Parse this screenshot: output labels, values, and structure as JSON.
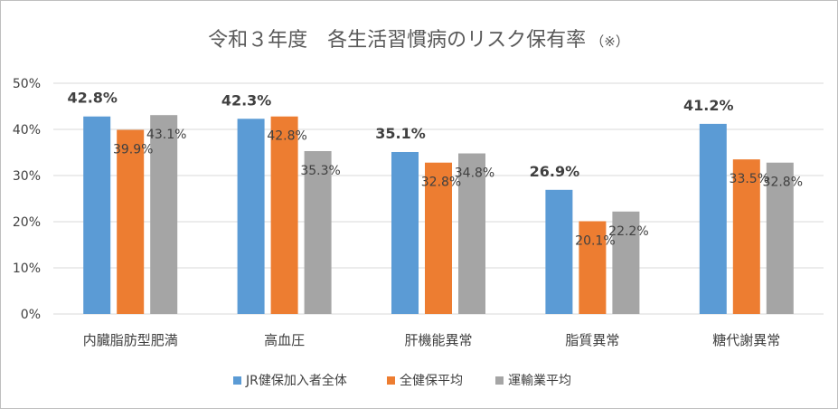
{
  "chart_data": {
    "type": "bar",
    "title": "令和３年度　各生活習慣病のリスク保有率",
    "title_note": "（※）",
    "categories": [
      "内臓脂肪型肥満",
      "高血圧",
      "肝機能異常",
      "脂質異常",
      "糖代謝異常"
    ],
    "series": [
      {
        "name": "JR健保加入者全体",
        "values": [
          42.8,
          42.3,
          35.1,
          26.9,
          41.2
        ],
        "color": "#5B9BD5"
      },
      {
        "name": "全健保平均",
        "values": [
          39.9,
          42.8,
          32.8,
          20.1,
          33.5
        ],
        "color": "#ED7D31"
      },
      {
        "name": "運輸業平均",
        "values": [
          43.1,
          35.3,
          34.8,
          22.2,
          32.8
        ],
        "color": "#A5A5A5"
      }
    ],
    "data_labels": [
      [
        "42.8%",
        "39.9%",
        "43.1%"
      ],
      [
        "42.3%",
        "42.8%",
        "35.3%"
      ],
      [
        "35.1%",
        "32.8%",
        "34.8%"
      ],
      [
        "26.9%",
        "20.1%",
        "22.2%"
      ],
      [
        "41.2%",
        "33.5%",
        "32.8%"
      ]
    ],
    "yticks": [
      0,
      10,
      20,
      30,
      40,
      50
    ],
    "ytick_labels": [
      "0%",
      "10%",
      "20%",
      "30%",
      "40%",
      "50%"
    ],
    "ylim": [
      0,
      50
    ],
    "xlabel": "",
    "ylabel": "",
    "grid": true,
    "legend_position": "bottom",
    "gridline_color": "#D9D9D9"
  }
}
